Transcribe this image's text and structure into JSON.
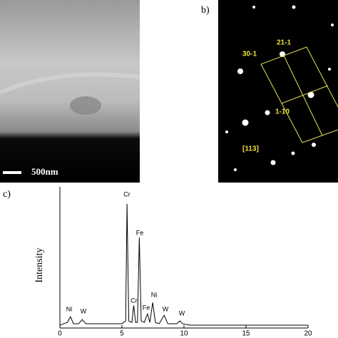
{
  "panels": {
    "a": {
      "scale_label": "500nm"
    },
    "b": {
      "label": "b)",
      "spots": [
        "21-1",
        "30-1",
        "1-10",
        "[113]"
      ]
    },
    "c": {
      "label": "c)"
    }
  },
  "chart_data": {
    "type": "line",
    "y_label": "Intensity",
    "x": [
      0,
      0.3,
      0.6,
      0.85,
      1.1,
      1.5,
      1.8,
      2.1,
      3,
      4,
      5,
      5.3,
      5.41,
      5.55,
      5.8,
      5.95,
      6.1,
      6.25,
      6.4,
      6.55,
      6.8,
      7.06,
      7.25,
      7.48,
      7.7,
      8.0,
      8.4,
      8.7,
      9,
      9.4,
      9.67,
      9.9,
      10.5,
      12,
      14,
      16,
      18,
      20
    ],
    "series": [
      {
        "color": "#000000",
        "values": [
          2,
          3,
          4,
          8,
          3,
          3,
          6,
          3,
          3,
          3,
          3,
          5,
          88,
          5,
          4,
          16,
          4,
          4,
          64,
          5,
          4,
          10,
          4,
          18,
          4,
          3,
          9,
          3,
          3,
          3,
          5,
          3,
          2,
          2,
          2,
          2,
          2,
          2
        ]
      }
    ],
    "annotations": [
      "Ni",
      "W",
      "Cr",
      "Cr",
      "Fe",
      "Fe",
      "Ni",
      "W",
      "W"
    ],
    "xlim": [
      0,
      20
    ],
    "ylim": [
      0,
      100
    ],
    "xticks": [
      0,
      5,
      10,
      15,
      20
    ]
  }
}
